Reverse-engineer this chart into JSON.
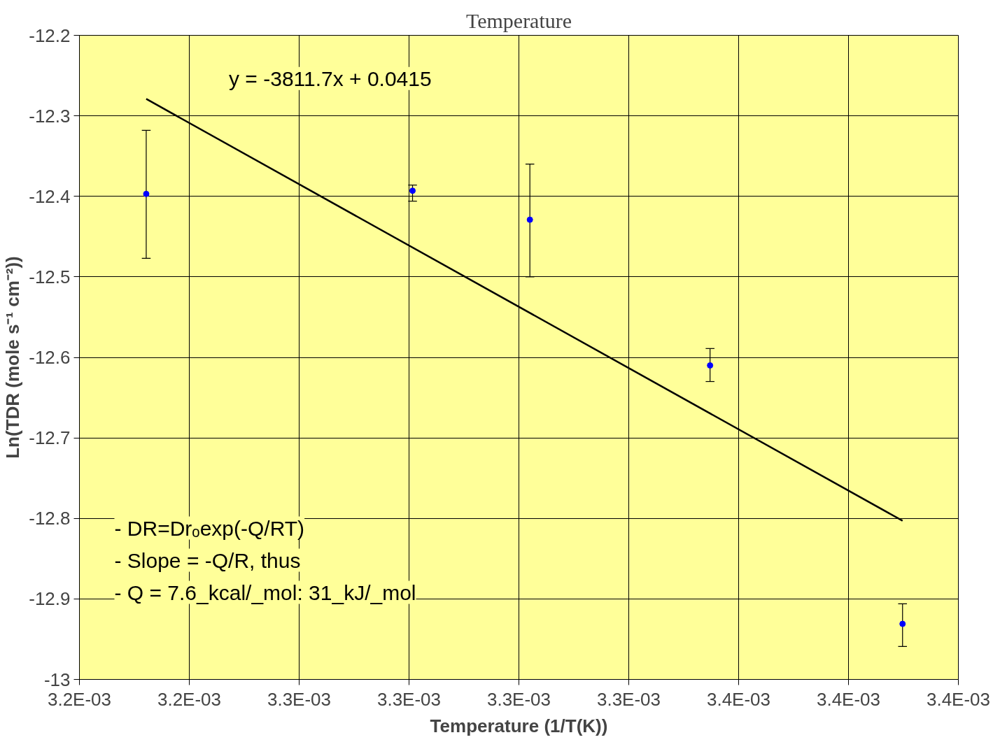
{
  "chart_data": {
    "type": "scatter",
    "title": "Temperature",
    "xlabel": "Temperature (1/T(K))",
    "ylabel": "Ln(TDR (mole s⁻¹ cm⁻²))",
    "xlim": [
      0.0032,
      0.0034
    ],
    "xticks": [
      {
        "value": 0.0032,
        "label": "3.2E-03"
      },
      {
        "value": 0.003225,
        "label": "3.2E-03"
      },
      {
        "value": 0.00325,
        "label": "3.3E-03"
      },
      {
        "value": 0.003275,
        "label": "3.3E-03"
      },
      {
        "value": 0.0033,
        "label": "3.3E-03"
      },
      {
        "value": 0.003325,
        "label": "3.3E-03"
      },
      {
        "value": 0.00335,
        "label": "3.4E-03"
      },
      {
        "value": 0.003375,
        "label": "3.4E-03"
      },
      {
        "value": 0.0034,
        "label": "3.4E-03"
      }
    ],
    "ylim": [
      -13,
      -12.2
    ],
    "yticks": [
      -13,
      -12.9,
      -12.8,
      -12.7,
      -12.6,
      -12.5,
      -12.4,
      -12.3,
      -12.2
    ],
    "grid": true,
    "marker": "circle",
    "series": [
      {
        "color": "#0000ff",
        "x": [
          0.0032152,
          0.0032758,
          0.0033025,
          0.0033435,
          0.0033873
        ],
        "values": [
          -12.397,
          -12.393,
          -12.429,
          -12.61,
          -12.931
        ],
        "errors": [
          [
            -12.477,
            -12.318
          ],
          [
            -12.406,
            -12.386
          ],
          [
            -12.5,
            -12.36
          ],
          [
            -12.63,
            -12.589
          ],
          [
            -12.959,
            -12.906
          ]
        ]
      },
      {
        "type": "line",
        "marker": "none",
        "color": "#000000",
        "x": [
          0.0032152,
          0.0033873
        ],
        "values": [
          -12.279,
          -12.803
        ]
      }
    ],
    "annotations": [
      "y = -3811.7x + 0.0415",
      "- DR=Drₒexp(-Q/RT)",
      "- Slope = -Q/R, thus",
      "- Q = 7.6_kcal/_mol: 31_kJ/_mol"
    ]
  }
}
